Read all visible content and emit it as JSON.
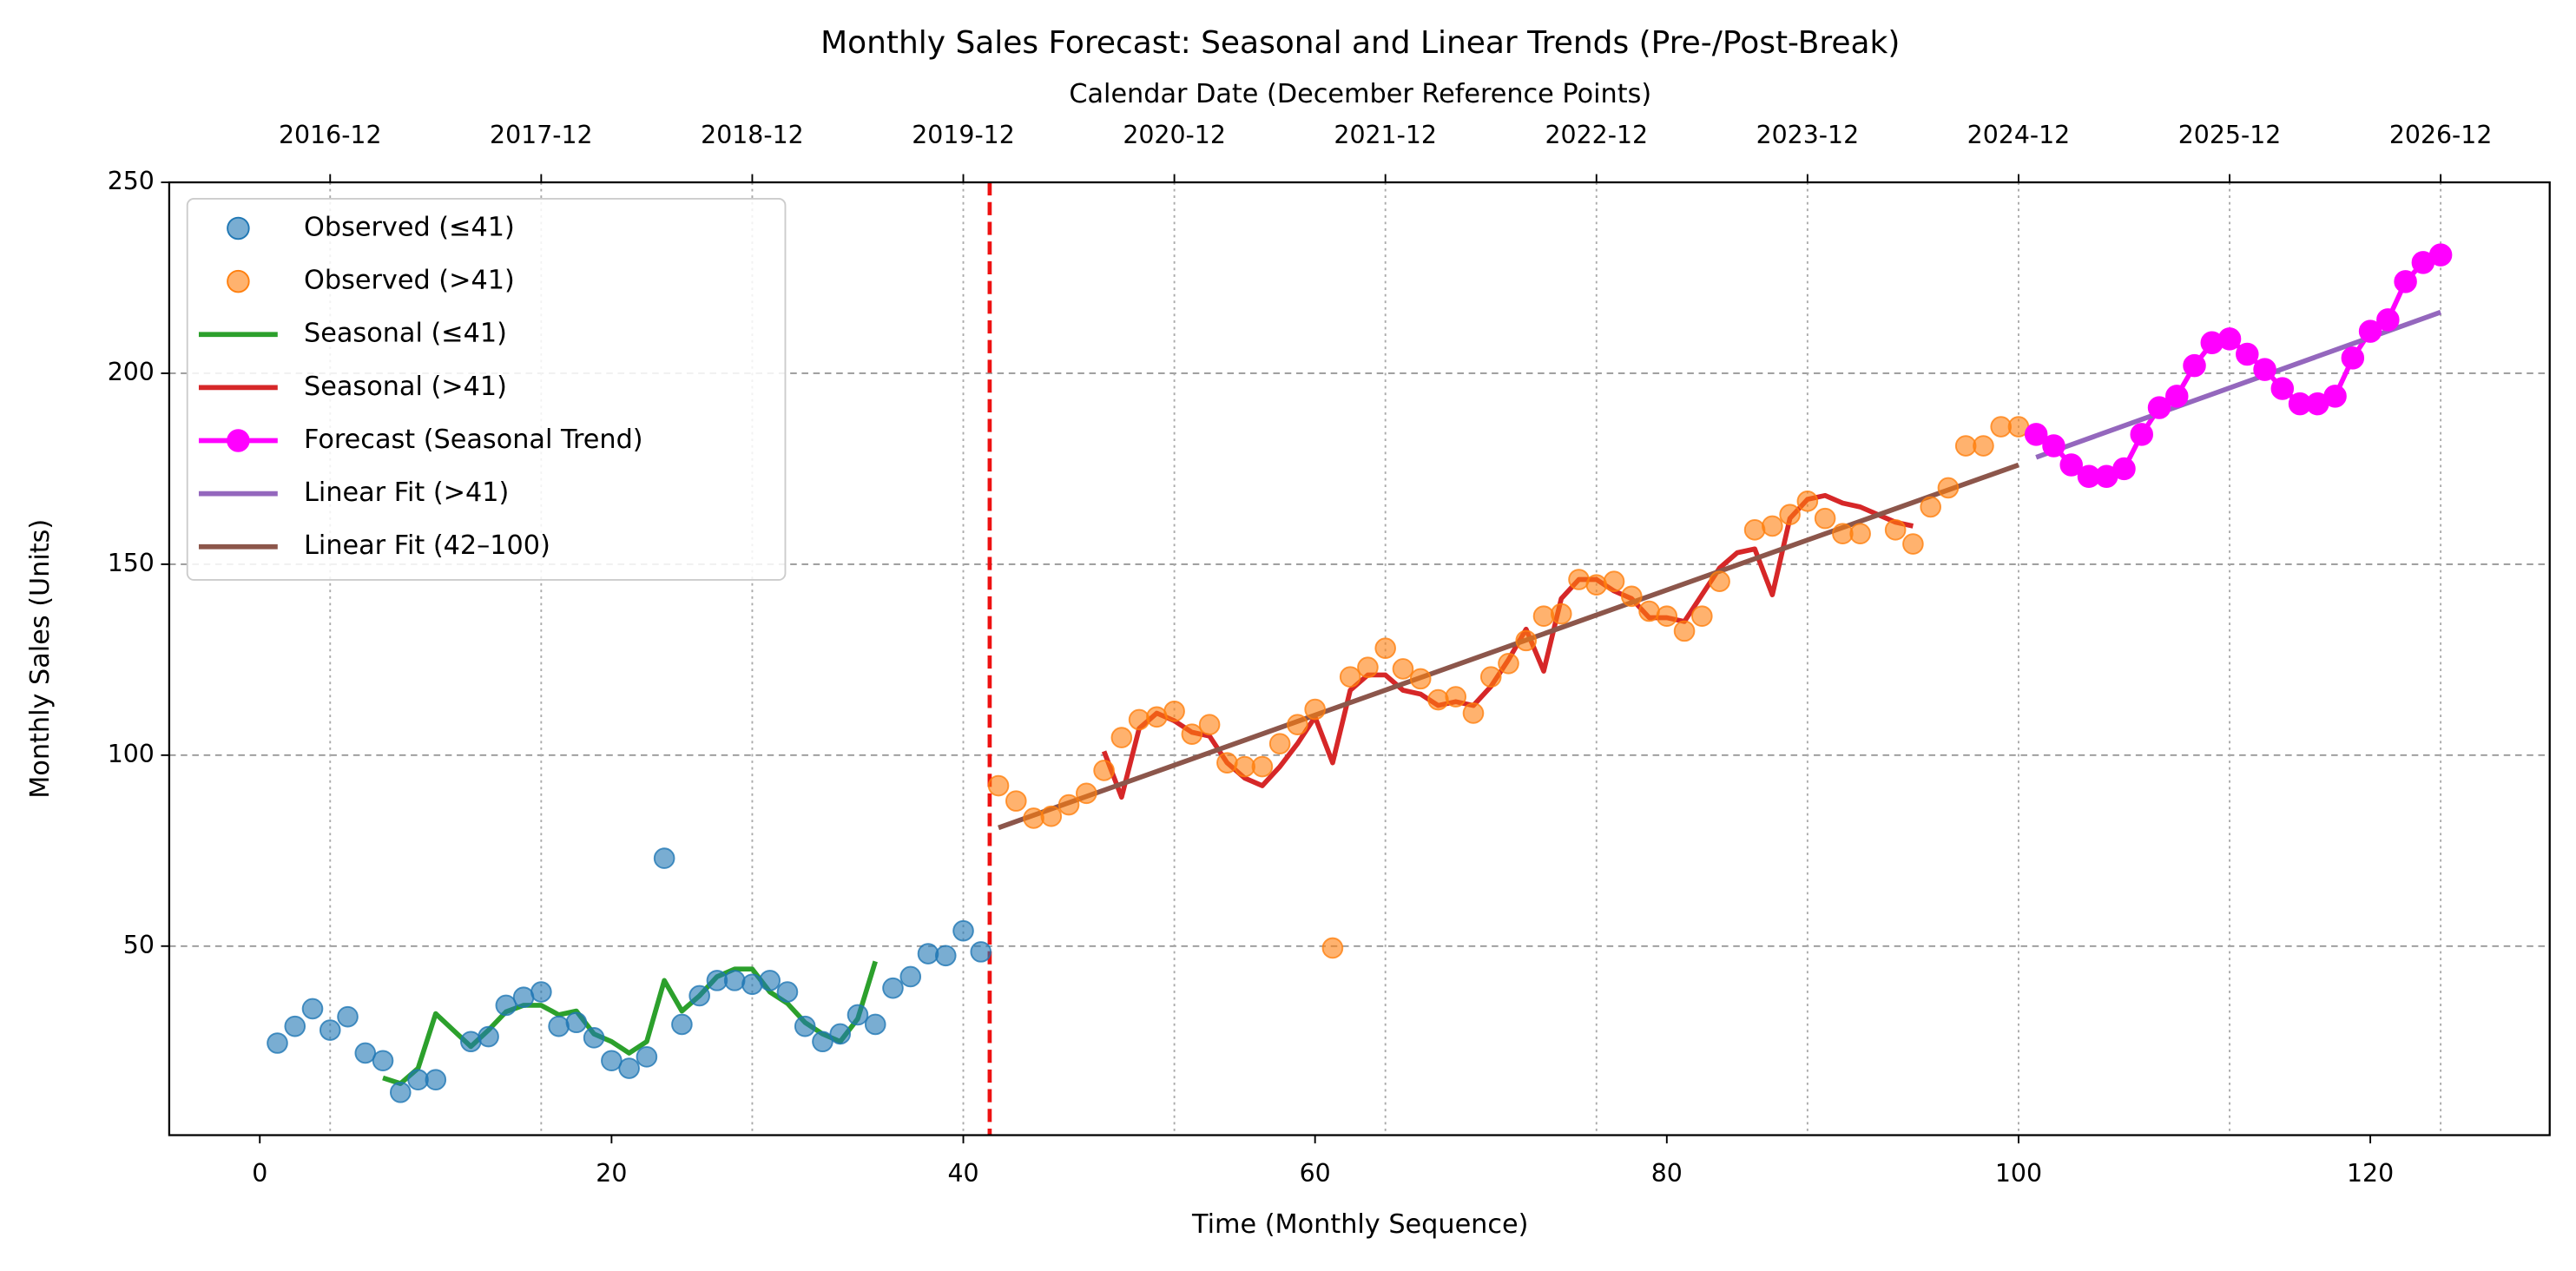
{
  "chart_data": {
    "type": "line",
    "title": "Monthly Sales Forecast: Seasonal and Linear Trends (Pre-/Post-Break)",
    "x_label": "Time (Monthly Sequence)",
    "y_label": "Monthly Sales (Units)",
    "x2_label": "Calendar Date (December Reference Points)",
    "xlim": [
      -5.15,
      130.2
    ],
    "ylim": [
      0.5,
      250
    ],
    "xticks": [
      0,
      20,
      40,
      60,
      80,
      100,
      120
    ],
    "yticks": [
      50,
      100,
      150,
      200,
      250
    ],
    "x2ticks": [
      {
        "value": 4,
        "label": "2016-12"
      },
      {
        "value": 16,
        "label": "2017-12"
      },
      {
        "value": 28,
        "label": "2018-12"
      },
      {
        "value": 40,
        "label": "2019-12"
      },
      {
        "value": 52,
        "label": "2020-12"
      },
      {
        "value": 64,
        "label": "2021-12"
      },
      {
        "value": 76,
        "label": "2022-12"
      },
      {
        "value": 88,
        "label": "2023-12"
      },
      {
        "value": 100,
        "label": "2024-12"
      },
      {
        "value": 112,
        "label": "2025-12"
      },
      {
        "value": 124,
        "label": "2026-12"
      }
    ],
    "grid": true,
    "legend": "upper left",
    "break_x": 41.5,
    "break_color": "#ee1111",
    "series": [
      {
        "name": "Observed (≤41)",
        "style": "marker",
        "color": "#1f77b4",
        "x": [
          1,
          2,
          3,
          4,
          5,
          6,
          7,
          8,
          9,
          10,
          12,
          13,
          14,
          15,
          16,
          17,
          18,
          19,
          20,
          21,
          22,
          23,
          24,
          25,
          26,
          27,
          28,
          29,
          30,
          31,
          32,
          33,
          34,
          35,
          36,
          37,
          38,
          39,
          40,
          41
        ],
        "values": [
          24.6,
          29,
          33.6,
          28,
          31.5,
          22,
          20,
          11.7,
          15,
          15,
          25,
          26.3,
          34.5,
          36.6,
          38,
          29,
          30,
          26,
          20,
          18,
          21,
          73,
          29.5,
          37,
          41,
          41,
          40,
          41,
          38,
          29,
          25,
          27,
          32,
          29.5,
          39,
          42,
          48,
          47.5,
          54,
          48.5
        ]
      },
      {
        "name": "Observed (>41)",
        "style": "marker",
        "color": "#ff7f0e",
        "x": [
          42,
          43,
          44,
          45,
          46,
          47,
          48,
          49,
          50,
          51,
          52,
          53,
          54,
          55,
          56,
          57,
          58,
          59,
          60,
          61,
          62,
          63,
          64,
          65,
          66,
          67,
          68,
          69,
          70,
          71,
          72,
          73,
          74,
          75,
          76,
          77,
          78,
          79,
          80,
          81,
          82,
          83,
          85,
          86,
          87,
          88,
          89,
          90,
          91,
          93,
          94,
          95,
          96,
          97,
          98,
          99,
          100
        ],
        "values": [
          92,
          88,
          83.5,
          84,
          87,
          90,
          96,
          104.6,
          109.3,
          110,
          111.5,
          105.5,
          108,
          98,
          97,
          97,
          103,
          108,
          112,
          49.5,
          120.5,
          123,
          128,
          122.6,
          120,
          114.5,
          115.3,
          111,
          120.5,
          124,
          130,
          136.4,
          137,
          146,
          144.6,
          145.5,
          141.6,
          137.7,
          136.4,
          132.5,
          136.4,
          145.5,
          159,
          160,
          163,
          166.5,
          162,
          158,
          158,
          159,
          155.3,
          165,
          170,
          181,
          181,
          186,
          186
        ]
      },
      {
        "name": "Seasonal (≤41)",
        "style": "line",
        "color": "#2ca02c",
        "x": [
          7,
          8,
          9,
          10,
          11,
          12,
          13,
          14,
          15,
          16,
          17,
          18,
          19,
          20,
          21,
          22,
          23,
          24,
          25,
          26,
          27,
          28,
          29,
          30,
          31,
          32,
          33,
          34,
          35
        ],
        "values": [
          15.5,
          14,
          18,
          32.3,
          28,
          23.7,
          28,
          32.8,
          34.5,
          34.5,
          32,
          33,
          27,
          25,
          22,
          25,
          41,
          33,
          37,
          42,
          44,
          44,
          38,
          35,
          30,
          27,
          25,
          31,
          46
        ]
      },
      {
        "name": "Seasonal (>41)",
        "style": "line",
        "color": "#d62728",
        "x": [
          48,
          49,
          50,
          51,
          52,
          53,
          54,
          55,
          56,
          57,
          58,
          59,
          60,
          61,
          62,
          63,
          64,
          65,
          66,
          67,
          68,
          69,
          70,
          71,
          72,
          73,
          74,
          75,
          76,
          77,
          78,
          79,
          80,
          81,
          82,
          83,
          84,
          85,
          86,
          87,
          88,
          89,
          90,
          91,
          92,
          93,
          94
        ],
        "values": [
          101,
          89,
          107,
          111,
          109,
          106,
          105,
          98,
          94,
          92,
          97,
          103,
          110,
          98,
          117,
          121,
          121,
          117,
          116,
          113,
          114,
          113,
          118,
          125,
          133,
          122,
          141,
          146,
          146,
          143,
          141,
          136,
          136,
          135,
          142,
          149,
          153,
          154,
          142,
          162,
          167,
          168,
          166,
          165,
          163,
          161,
          160
        ]
      },
      {
        "name": "Forecast (Seasonal Trend)",
        "style": "line-marker",
        "color": "#ff00ff",
        "x": [
          101,
          102,
          103,
          104,
          105,
          106,
          107,
          108,
          109,
          110,
          111,
          112,
          113,
          114,
          115,
          116,
          117,
          118,
          119,
          120,
          121,
          122,
          123,
          124
        ],
        "values": [
          184,
          181,
          176,
          173,
          173,
          175,
          184,
          191,
          194,
          202,
          208,
          209,
          205,
          201,
          196,
          192,
          192,
          194,
          204,
          211,
          214,
          224,
          229,
          231
        ]
      },
      {
        "name": "Linear Fit (>41)",
        "style": "line",
        "color": "#9467bd",
        "x": [
          101,
          124
        ],
        "values": [
          178,
          216
        ]
      },
      {
        "name": "Linear Fit (42–100)",
        "style": "line",
        "color": "#8c564b",
        "x": [
          42,
          100
        ],
        "values": [
          81,
          176
        ]
      }
    ]
  }
}
